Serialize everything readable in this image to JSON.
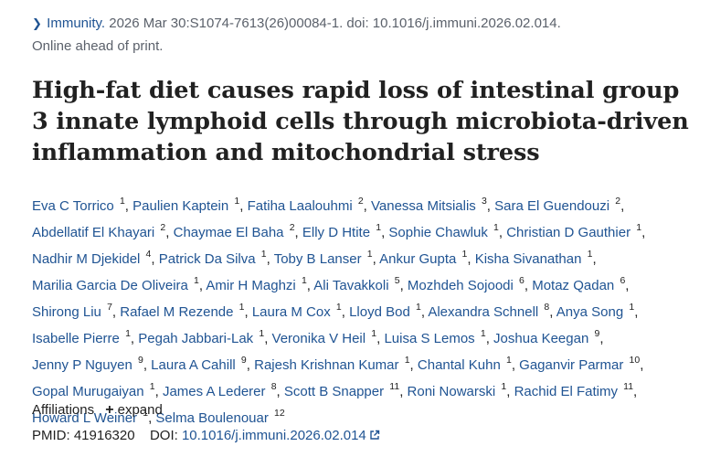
{
  "citation": {
    "journal": "Immunity.",
    "details": " 2026 Mar 30:S1074-7613(26)00084-1. doi: 10.1016/j.immuni.2026.02.014.",
    "status": "Online ahead of print."
  },
  "title": "High-fat diet causes rapid loss of intestinal group 3 innate lymphoid cells through microbiota-driven inflammation and mitochondrial stress",
  "authors": [
    {
      "name": "Eva C Torrico",
      "aff": "1"
    },
    {
      "name": "Paulien Kaptein",
      "aff": "1"
    },
    {
      "name": "Fatiha Laalouhmi",
      "aff": "2"
    },
    {
      "name": "Vanessa Mitsialis",
      "aff": "3"
    },
    {
      "name": "Sara El Guendouzi",
      "aff": "2"
    },
    {
      "name": "Abdellatif El Khayari",
      "aff": "2"
    },
    {
      "name": "Chaymae El Baha",
      "aff": "2"
    },
    {
      "name": "Elly D Htite",
      "aff": "1"
    },
    {
      "name": "Sophie Chawluk",
      "aff": "1"
    },
    {
      "name": "Christian D Gauthier",
      "aff": "1"
    },
    {
      "name": "Nadhir M Djekidel",
      "aff": "4"
    },
    {
      "name": "Patrick Da Silva",
      "aff": "1"
    },
    {
      "name": "Toby B Lanser",
      "aff": "1"
    },
    {
      "name": "Ankur Gupta",
      "aff": "1"
    },
    {
      "name": "Kisha Sivanathan",
      "aff": "1"
    },
    {
      "name": "Marilia Garcia De Oliveira",
      "aff": "1"
    },
    {
      "name": "Amir H Maghzi",
      "aff": "1"
    },
    {
      "name": "Ali Tavakkoli",
      "aff": "5"
    },
    {
      "name": "Mozhdeh Sojoodi",
      "aff": "6"
    },
    {
      "name": "Motaz Qadan",
      "aff": "6"
    },
    {
      "name": "Shirong Liu",
      "aff": "7"
    },
    {
      "name": "Rafael M Rezende",
      "aff": "1"
    },
    {
      "name": "Laura M Cox",
      "aff": "1"
    },
    {
      "name": "Lloyd Bod",
      "aff": "1"
    },
    {
      "name": "Alexandra Schnell",
      "aff": "8"
    },
    {
      "name": "Anya Song",
      "aff": "1"
    },
    {
      "name": "Isabelle Pierre",
      "aff": "1"
    },
    {
      "name": "Pegah Jabbari-Lak",
      "aff": "1"
    },
    {
      "name": "Veronika V Heil",
      "aff": "1"
    },
    {
      "name": "Luisa S Lemos",
      "aff": "1"
    },
    {
      "name": "Joshua Keegan",
      "aff": "9"
    },
    {
      "name": "Jenny P Nguyen",
      "aff": "9"
    },
    {
      "name": "Laura A Cahill",
      "aff": "9"
    },
    {
      "name": "Rajesh Krishnan Kumar",
      "aff": "1"
    },
    {
      "name": "Chantal Kuhn",
      "aff": "1"
    },
    {
      "name": "Gaganvir Parmar",
      "aff": "10"
    },
    {
      "name": "Gopal Murugaiyan",
      "aff": "1"
    },
    {
      "name": "James A Lederer",
      "aff": "8"
    },
    {
      "name": "Scott B Snapper",
      "aff": "11"
    },
    {
      "name": "Roni Nowarski",
      "aff": "1"
    },
    {
      "name": "Rachid El Fatimy",
      "aff": "11"
    },
    {
      "name": "Howard L Weiner",
      "aff": "1"
    },
    {
      "name": "Selma Boulenouar",
      "aff": "12"
    }
  ],
  "affiliations": {
    "label": "Affiliations",
    "expand_label": "expand"
  },
  "ids": {
    "pmid_label": "PMID:",
    "pmid": "41916320",
    "doi_label": "DOI:",
    "doi": "10.1016/j.immuni.2026.02.014"
  },
  "colors": {
    "link": "#205493",
    "text": "#212121",
    "muted": "#5b616b"
  }
}
